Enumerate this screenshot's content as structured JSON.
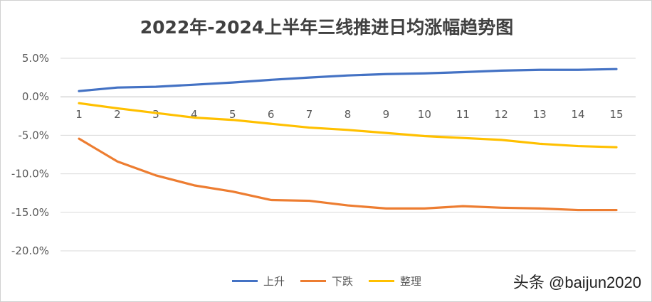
{
  "chart_data": {
    "type": "line",
    "title": "2022年-2024上半年三线推进日均涨幅趋势图",
    "xlabel": "",
    "ylabel": "",
    "x": [
      1,
      2,
      3,
      4,
      5,
      6,
      7,
      8,
      9,
      10,
      11,
      12,
      13,
      14,
      15
    ],
    "ylim": [
      -20,
      5
    ],
    "yticks": [
      "5.0%",
      "0.0%",
      "-5.0%",
      "-10.0%",
      "-15.0%",
      "-20.0%"
    ],
    "ytick_values": [
      5,
      0,
      -5,
      -10,
      -15,
      -20
    ],
    "grid": true,
    "legend_position": "bottom",
    "series": [
      {
        "name": "上升",
        "color": "#4472C4",
        "values": [
          0.74,
          1.2,
          1.3,
          1.57,
          1.85,
          2.2,
          2.5,
          2.77,
          2.95,
          3.04,
          3.2,
          3.4,
          3.5,
          3.5,
          3.6
        ]
      },
      {
        "name": "下跌",
        "color": "#ED7D31",
        "values": [
          -5.44,
          -8.4,
          -10.2,
          -11.5,
          -12.3,
          -13.4,
          -13.5,
          -14.1,
          -14.5,
          -14.5,
          -14.2,
          -14.4,
          -14.5,
          -14.7,
          -14.7
        ]
      },
      {
        "name": "整理",
        "color": "#FFC000",
        "values": [
          -0.83,
          -1.5,
          -2.1,
          -2.7,
          -3.0,
          -3.5,
          -4.0,
          -4.3,
          -4.7,
          -5.1,
          -5.35,
          -5.6,
          -6.1,
          -6.4,
          -6.55
        ]
      }
    ]
  },
  "watermark": "头条 @baijun2020"
}
